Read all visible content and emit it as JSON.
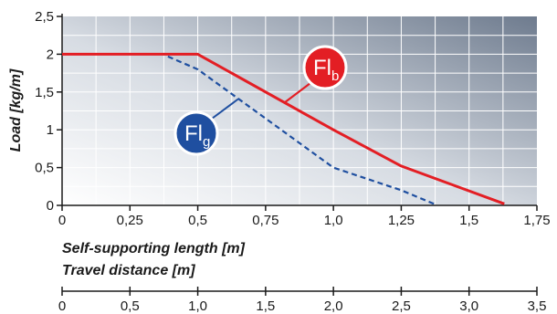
{
  "chart_data": {
    "type": "line",
    "ylabel": "Load [kg/m]",
    "xlabel": "Self-supporting length [m]",
    "x2label": "Travel distance [m]",
    "xlim": [
      0,
      1.75
    ],
    "ylim": [
      0,
      2.5
    ],
    "x_ticks": [
      "0",
      "0,25",
      "0,5",
      "0,75",
      "1,0",
      "1,25",
      "1,5",
      "1,75"
    ],
    "x_tick_values": [
      0,
      0.25,
      0.5,
      0.75,
      1.0,
      1.25,
      1.5,
      1.75
    ],
    "y_ticks": [
      "0",
      "0,5",
      "1",
      "1,5",
      "2",
      "2,5"
    ],
    "y_tick_values": [
      0,
      0.5,
      1,
      1.5,
      2,
      2.5
    ],
    "x2_ticks": [
      "0",
      "0,5",
      "1,0",
      "1,5",
      "2,0",
      "2,5",
      "3,0",
      "3,5"
    ],
    "grid": true,
    "series": [
      {
        "badge_main": "Fl",
        "badge_sub": "b",
        "color": "#e31e24",
        "dash": false,
        "x": [
          0,
          0.5,
          1.0,
          1.25,
          1.63
        ],
        "y": [
          2.0,
          2.0,
          1.0,
          0.52,
          0.02
        ]
      },
      {
        "badge_main": "Fl",
        "badge_sub": "g",
        "color": "#1f4fa0",
        "dash": true,
        "x": [
          0.39,
          0.5,
          1.0,
          1.25,
          1.37
        ],
        "y": [
          1.97,
          1.8,
          0.5,
          0.2,
          0.02
        ]
      }
    ]
  }
}
